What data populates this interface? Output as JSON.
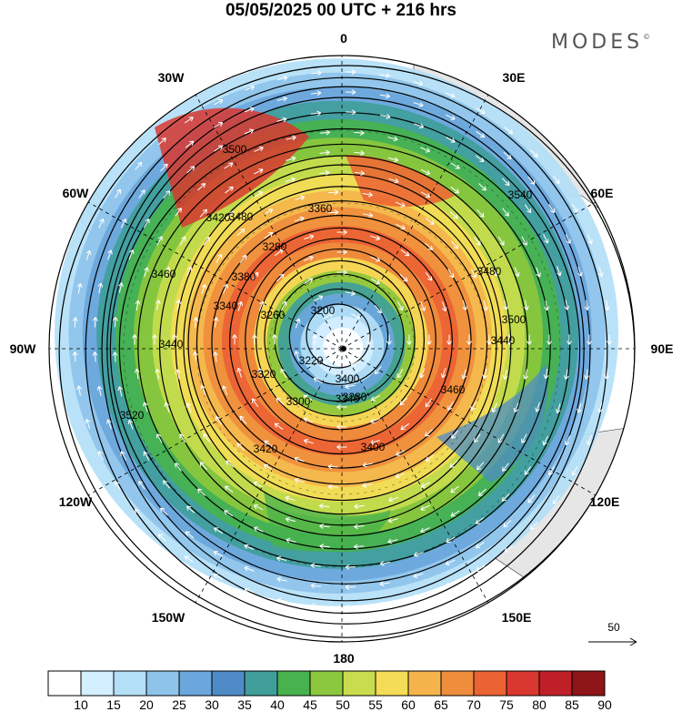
{
  "header": {
    "title": "05/05/2025  00 UTC  + 216 hrs",
    "brand": "MODES",
    "brand_mark": "©"
  },
  "map": {
    "projection": "south polar stereographic",
    "longitude_labels": [
      "0",
      "30E",
      "60E",
      "90E",
      "120E",
      "150E",
      "180",
      "150W",
      "120W",
      "90W",
      "60W",
      "30W"
    ],
    "contour_labels": [
      "3200",
      "3220",
      "3260",
      "3280",
      "3280",
      "3300",
      "3320",
      "3340",
      "3340",
      "3360",
      "3380",
      "3400",
      "3400",
      "3420",
      "3420",
      "3440",
      "3440",
      "3460",
      "3460",
      "3480",
      "3480",
      "3500",
      "3500",
      "3520",
      "3540"
    ],
    "reference_vector": {
      "label": "50"
    },
    "colors": {
      "land": "#e6e6e6",
      "contour": "#000000",
      "wind_vectors": "#ffffff"
    }
  },
  "colorbar": {
    "ticks": [
      "10",
      "15",
      "20",
      "25",
      "30",
      "35",
      "40",
      "45",
      "50",
      "55",
      "60",
      "65",
      "70",
      "75",
      "80",
      "85",
      "90"
    ],
    "colors": [
      "#ffffff",
      "#d4efff",
      "#b3dff7",
      "#8ec3ea",
      "#6ba6dc",
      "#4f8cc7",
      "#3f9e9a",
      "#47b24e",
      "#8bc83d",
      "#c8dc4e",
      "#f5dc57",
      "#f5b44b",
      "#ef8d3c",
      "#eb6233",
      "#d93830",
      "#bf2028",
      "#8e1517"
    ]
  }
}
